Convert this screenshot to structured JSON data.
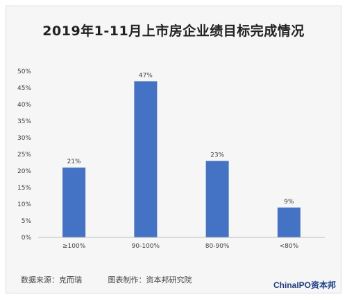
{
  "header": {
    "title": "2019年1-11月上市房企业绩目标完成情况"
  },
  "footer": {
    "source": "数据来源：克而瑞",
    "maker": "图表制作：资本邦研究院",
    "brand": "ChinaIPO资本邦"
  },
  "colors": {
    "bar": "#4472c4",
    "axis": "#bfbfbf",
    "text": "#404040"
  },
  "chart_data": {
    "type": "bar",
    "categories": [
      "≥100%",
      "90-100%",
      "80-90%",
      "<80%"
    ],
    "values": [
      21,
      47,
      23,
      9
    ],
    "data_labels": [
      "21%",
      "47%",
      "23%",
      "9%"
    ],
    "yticks": [
      "0%",
      "5%",
      "10%",
      "15%",
      "20%",
      "25%",
      "30%",
      "35%",
      "40%",
      "45%",
      "50%"
    ],
    "ylim": [
      0,
      50
    ],
    "grid": false,
    "legend": "none"
  }
}
